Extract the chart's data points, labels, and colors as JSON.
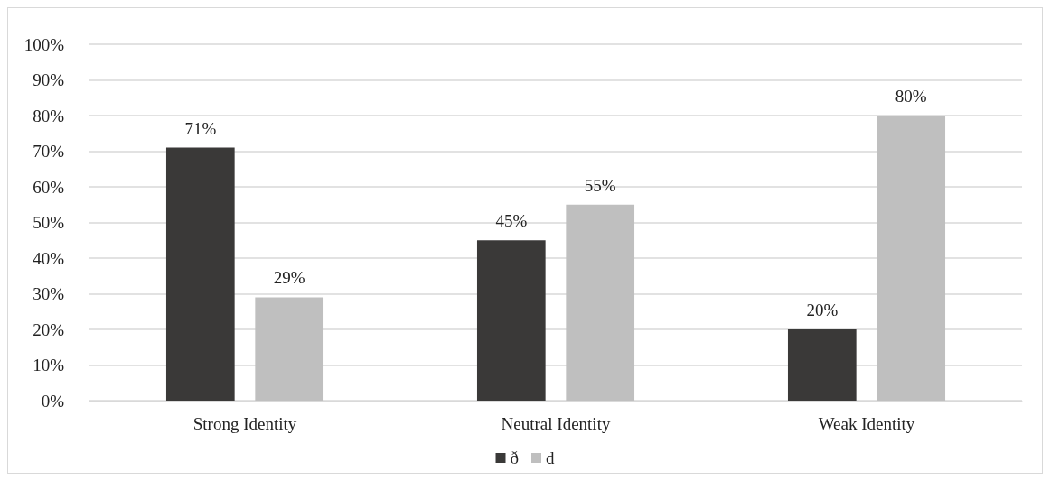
{
  "chart_data": {
    "type": "bar",
    "categories": [
      "Strong Identity",
      "Neutral Identity",
      "Weak Identity"
    ],
    "series": [
      {
        "name": "ð",
        "color": "#3a3938",
        "values": [
          71,
          45,
          20
        ],
        "value_labels": [
          "71%",
          "45%",
          "20%"
        ]
      },
      {
        "name": "d",
        "color": "#bfbfbf",
        "values": [
          29,
          55,
          80
        ],
        "value_labels": [
          "29%",
          "55%",
          "80%"
        ]
      }
    ],
    "ylim": [
      0,
      100
    ],
    "yticks": [
      {
        "value": 0,
        "label": "0%"
      },
      {
        "value": 10,
        "label": "10%"
      },
      {
        "value": 20,
        "label": "20%"
      },
      {
        "value": 30,
        "label": "30%"
      },
      {
        "value": 40,
        "label": "40%"
      },
      {
        "value": 50,
        "label": "50%"
      },
      {
        "value": 60,
        "label": "60%"
      },
      {
        "value": 70,
        "label": "70%"
      },
      {
        "value": 80,
        "label": "80%"
      },
      {
        "value": 90,
        "label": "90%"
      },
      {
        "value": 100,
        "label": "100%"
      }
    ],
    "grid": "y",
    "legend": "bottom"
  }
}
